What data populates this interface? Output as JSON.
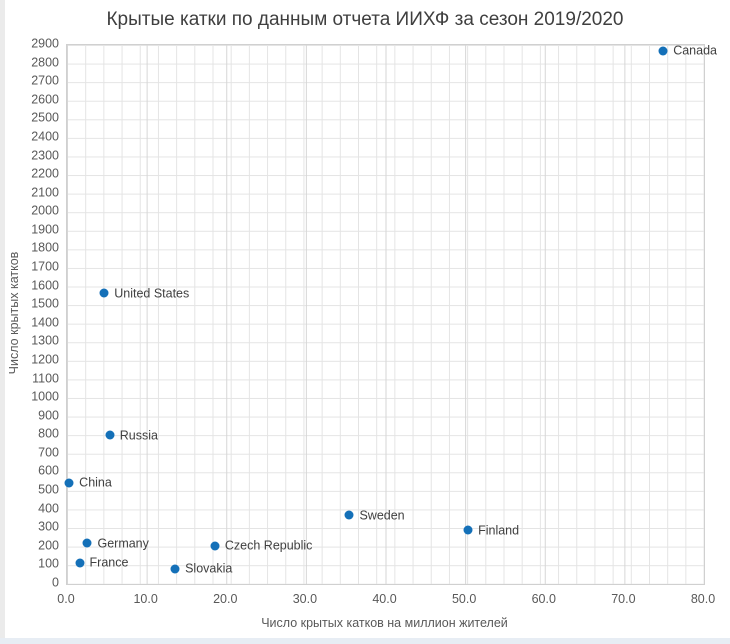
{
  "title": "Крытые катки по данным отчета ИИХФ за сезон 2019/2020",
  "colors": {
    "point_fill": "#1470b8",
    "title_text": "#3f3f3f",
    "tick_text": "#595959",
    "label_text": "#404040"
  },
  "chart_data": {
    "type": "scatter",
    "title": "Крытые катки по данным отчета ИИХФ за сезон 2019/2020",
    "xlabel": "Число крытых катков на миллион жителей",
    "ylabel": "Число крытых катков",
    "xlim": [
      0,
      80
    ],
    "ylim": [
      0,
      2900
    ],
    "grid": true,
    "legend": false,
    "x_tick_labels": [
      "0.0",
      "10.0",
      "20.0",
      "30.0",
      "40.0",
      "50.0",
      "60.0",
      "70.0",
      "80.0"
    ],
    "x_tick_values": [
      0,
      10,
      20,
      30,
      40,
      50,
      60,
      70,
      80
    ],
    "y_tick_labels": [
      "0",
      "100",
      "200",
      "300",
      "400",
      "500",
      "600",
      "700",
      "800",
      "900",
      "1000",
      "1100",
      "1200",
      "1300",
      "1400",
      "1500",
      "1600",
      "1700",
      "1800",
      "1900",
      "2000",
      "2100",
      "2200",
      "2300",
      "2400",
      "2500",
      "2600",
      "2700",
      "2800",
      "2900"
    ],
    "y_tick_values": [
      0,
      100,
      200,
      300,
      400,
      500,
      600,
      700,
      800,
      900,
      1000,
      1100,
      1200,
      1300,
      1400,
      1500,
      1600,
      1700,
      1800,
      1900,
      2000,
      2100,
      2200,
      2300,
      2400,
      2500,
      2600,
      2700,
      2800,
      2900
    ],
    "points": [
      {
        "label": "Canada",
        "x": 75.0,
        "y": 2865
      },
      {
        "label": "United States",
        "x": 4.8,
        "y": 1560
      },
      {
        "label": "Russia",
        "x": 5.5,
        "y": 795
      },
      {
        "label": "China",
        "x": 0.4,
        "y": 540
      },
      {
        "label": "Sweden",
        "x": 35.6,
        "y": 365
      },
      {
        "label": "Finland",
        "x": 50.5,
        "y": 285
      },
      {
        "label": "Germany",
        "x": 2.7,
        "y": 215
      },
      {
        "label": "Czech Republic",
        "x": 18.7,
        "y": 200
      },
      {
        "label": "France",
        "x": 1.7,
        "y": 110
      },
      {
        "label": "Slovakia",
        "x": 13.7,
        "y": 78
      }
    ]
  }
}
